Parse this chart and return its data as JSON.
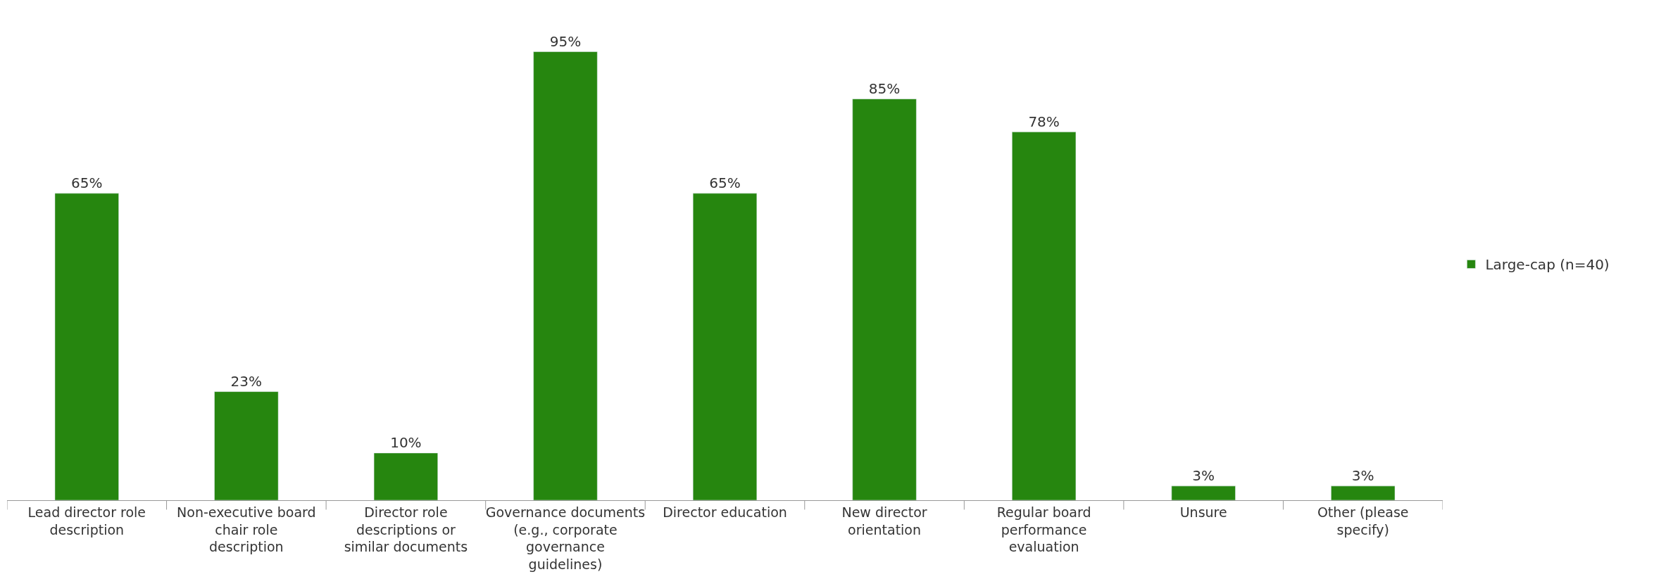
{
  "chart_data": {
    "type": "bar",
    "categories": [
      "Lead director role description",
      "Non-executive board chair role description",
      "Director role descriptions or similar documents",
      "Governance documents (e.g., corporate governance guidelines)",
      "Director education",
      "New director orientation",
      "Regular board performance evaluation",
      "Unsure",
      "Other (please specify)"
    ],
    "series": [
      {
        "name": "Large-cap (n=40)",
        "color": "#26860f",
        "values": [
          65,
          23,
          10,
          95,
          65,
          85,
          78,
          3,
          3
        ],
        "value_labels": [
          "65%",
          "23%",
          "10%",
          "95%",
          "65%",
          "85%",
          "78%",
          "3%",
          "3%"
        ]
      }
    ],
    "legend": "right"
  }
}
